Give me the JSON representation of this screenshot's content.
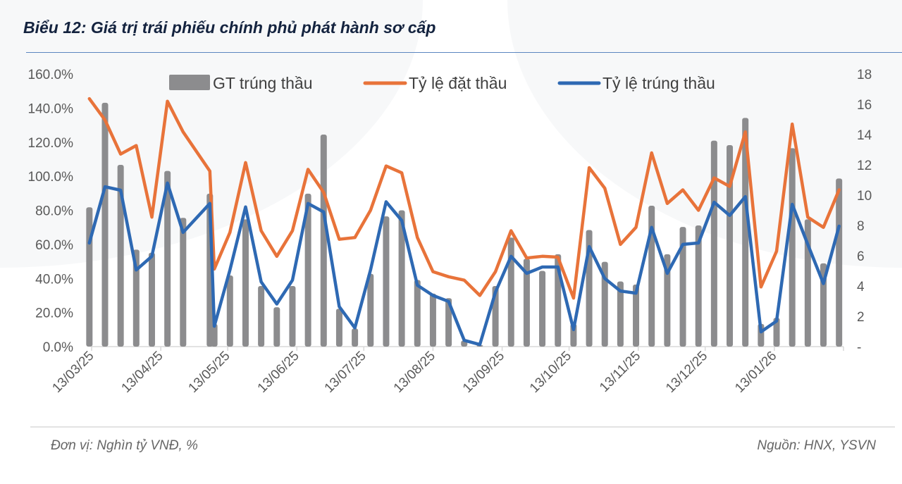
{
  "title": "Biểu 12: Giá trị trái phiếu chính phủ phát hành sơ cấp",
  "footer": {
    "unit": "Đơn vị: Nghìn tỷ VNĐ, %",
    "source": "Nguồn: HNX, YSVN"
  },
  "chart_data": {
    "type": "bar+line",
    "title": "",
    "x_range": [
      "2025-03-13",
      "2026-02-13"
    ],
    "x_tick_labels": [
      "13/03/25",
      "13/04/25",
      "13/05/25",
      "13/06/25",
      "13/07/25",
      "13/08/25",
      "13/09/25",
      "13/10/25",
      "13/11/25",
      "13/12/25",
      "13/01/26"
    ],
    "x_tick_dates": [
      "2025-03-13",
      "2025-04-13",
      "2025-05-13",
      "2025-06-13",
      "2025-07-13",
      "2025-08-13",
      "2025-09-13",
      "2025-10-13",
      "2025-11-13",
      "2025-12-13",
      "2026-01-13"
    ],
    "y_left": {
      "range": [
        0,
        160
      ],
      "tick_labels": [
        "0.0%",
        "20.0%",
        "40.0%",
        "60.0%",
        "80.0%",
        "100.0%",
        "120.0%",
        "140.0%",
        "160.0%"
      ]
    },
    "y_right": {
      "range": [
        0,
        18
      ],
      "tick_labels": [
        "-",
        "2",
        "4",
        "6",
        "8",
        "10",
        "12",
        "14",
        "16",
        "18"
      ]
    },
    "legend_position": "top",
    "grid": false,
    "dates": [
      "2025-03-12",
      "2025-03-19",
      "2025-03-26",
      "2025-04-02",
      "2025-04-09",
      "2025-04-16",
      "2025-04-23",
      "2025-05-05",
      "2025-05-07",
      "2025-05-14",
      "2025-05-21",
      "2025-05-28",
      "2025-06-04",
      "2025-06-11",
      "2025-06-18",
      "2025-06-25",
      "2025-07-02",
      "2025-07-09",
      "2025-07-16",
      "2025-07-23",
      "2025-07-30",
      "2025-08-06",
      "2025-08-13",
      "2025-08-20",
      "2025-08-27",
      "2025-09-03",
      "2025-09-10",
      "2025-09-17",
      "2025-09-24",
      "2025-10-01",
      "2025-10-08",
      "2025-10-15",
      "2025-10-22",
      "2025-10-29",
      "2025-11-05",
      "2025-11-12",
      "2025-11-19",
      "2025-11-26",
      "2025-12-03",
      "2025-12-10",
      "2025-12-17",
      "2025-12-24",
      "2025-12-31",
      "2026-01-07",
      "2026-01-14",
      "2026-01-21",
      "2026-01-28",
      "2026-02-04",
      "2026-02-11"
    ],
    "series": [
      {
        "name": "GT trúng thầu",
        "type": "bar",
        "axis": "right",
        "color": "#8c8c8e",
        "values": [
          9.2,
          16.1,
          12.0,
          6.4,
          6.2,
          11.6,
          8.5,
          10.1,
          1.5,
          4.7,
          8.4,
          4.0,
          2.6,
          4.0,
          10.1,
          14.0,
          2.5,
          1.2,
          4.8,
          8.6,
          9.0,
          4.4,
          3.5,
          3.2,
          0.4,
          0.1,
          4.0,
          7.2,
          5.8,
          5.0,
          6.1,
          1.5,
          7.7,
          5.6,
          4.3,
          4.1,
          9.3,
          6.1,
          7.9,
          8.0,
          13.6,
          13.3,
          15.1,
          1.5,
          1.9,
          13.1,
          8.4,
          5.5,
          11.1
        ]
      },
      {
        "name": "Tỷ lệ đặt thầu",
        "type": "line",
        "axis": "left",
        "color": "#e8733a",
        "values": [
          145.5,
          133,
          113,
          118,
          76,
          144,
          126,
          103,
          45.5,
          67,
          108,
          68,
          53,
          68,
          104,
          90.5,
          63,
          64,
          80,
          106,
          102,
          64,
          44,
          41,
          39,
          30,
          44,
          68,
          52,
          53,
          52.5,
          28.5,
          105,
          93,
          60,
          70,
          113.7,
          84,
          92,
          80,
          99,
          94,
          126,
          35,
          56,
          130.6,
          76,
          70,
          92
        ]
      },
      {
        "name": "Tỷ lệ trúng thầu",
        "type": "line",
        "axis": "left",
        "color": "#2e69b3",
        "values": [
          60.8,
          93.8,
          91.8,
          45,
          53,
          96,
          67,
          84,
          12,
          45,
          82,
          38,
          25,
          39,
          84,
          79,
          23.5,
          11,
          45,
          85,
          74,
          36,
          30,
          26.5,
          3.7,
          1.2,
          32,
          53,
          43,
          46.7,
          46.7,
          10,
          58.7,
          40,
          32.6,
          31.4,
          70,
          43,
          60,
          60.8,
          84.7,
          77,
          88,
          8.7,
          15,
          83.5,
          60,
          37,
          70.7
        ]
      }
    ]
  }
}
